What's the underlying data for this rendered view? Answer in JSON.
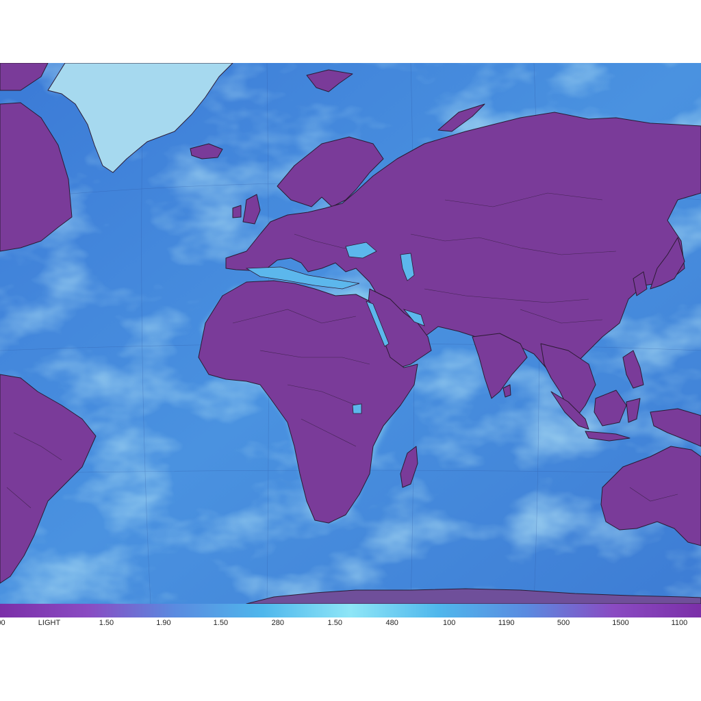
{
  "map": {
    "style": "false-colour satellite-style world map",
    "colors": {
      "ocean": "#3f7fd6",
      "ocean_light": "#63c7ef",
      "cloud": "#8fe3f5",
      "land": "#7a3b99",
      "land_dark": "#5f2882",
      "border": "#2b1a33",
      "ice": "#a9dff5"
    },
    "regions": [
      "Greenland",
      "Iceland",
      "Svalbard",
      "North America (east)",
      "South America (east)",
      "Europe",
      "Scandinavia",
      "Africa",
      "Madagascar",
      "Arabian Peninsula",
      "Russia",
      "Asia",
      "India",
      "Japan",
      "Sri Lanka",
      "Indochina",
      "Indonesia",
      "Philippines",
      "New Guinea",
      "Australia",
      "Antarctica"
    ]
  },
  "colorbar": {
    "gradient": [
      "#7b2fa8",
      "#8a4bc2",
      "#5a8be0",
      "#4fb7ec",
      "#8ee6f7",
      "#4fb7ec",
      "#5a8be0",
      "#8a4bc2",
      "#7b2fa8"
    ],
    "ticks": [
      "00",
      "LIGHT",
      "1.50",
      "1.90",
      "1.50",
      "280",
      "1.50",
      "480",
      "100",
      "1190",
      "500",
      "1500",
      "1100"
    ]
  }
}
